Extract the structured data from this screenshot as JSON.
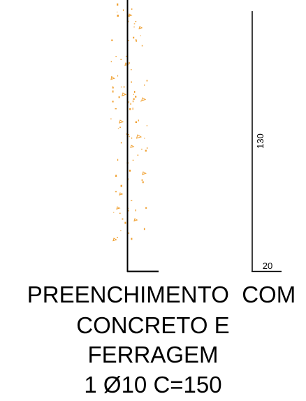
{
  "drawing": {
    "dimension_vertical": "130",
    "dimension_horizontal": "20",
    "aggregate_color": "#f0a030",
    "line_color": "#000000"
  },
  "caption": {
    "line1": "PREENCHIMENTO  COM",
    "line2": "CONCRETO E",
    "line3": "FERRAGEM",
    "line4": "1 Ø10 C=150"
  }
}
